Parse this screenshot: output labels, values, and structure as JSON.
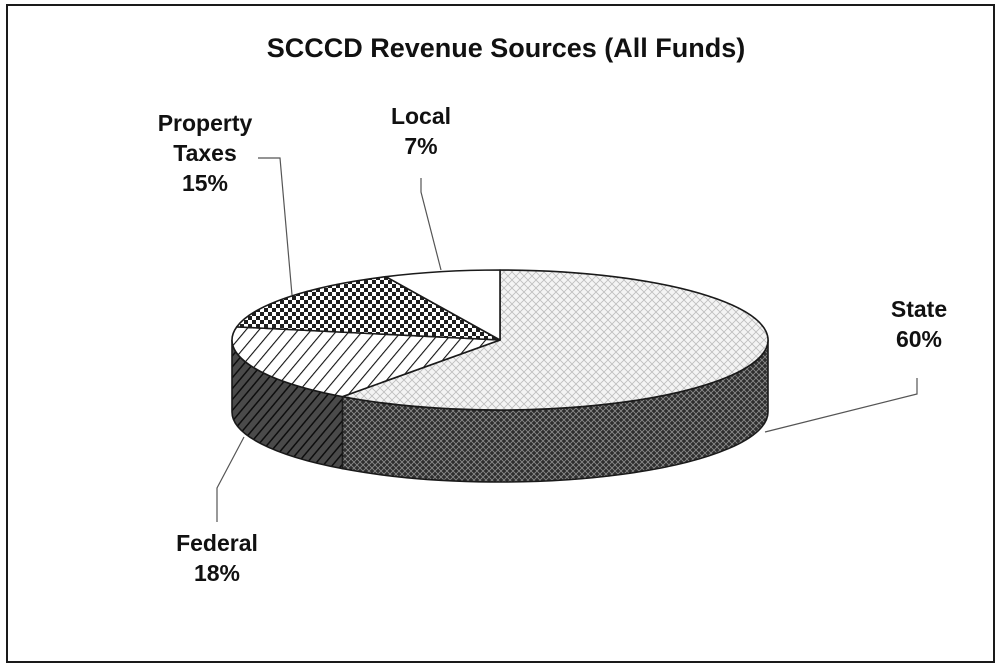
{
  "chart_data": {
    "type": "pie",
    "title": "SCCCD Revenue Sources (All Funds)",
    "three_d": true,
    "slices": [
      {
        "name": "State",
        "value": 60,
        "label_line1": "State",
        "label_pct": "60%",
        "pattern": "light-crosshatch"
      },
      {
        "name": "Federal",
        "value": 18,
        "label_line1": "Federal",
        "label_pct": "18%",
        "pattern": "diagonal-stripes"
      },
      {
        "name": "Property Taxes",
        "value": 15,
        "label_line1": "Property",
        "label_line2": "Taxes",
        "label_pct": "15%",
        "pattern": "checker"
      },
      {
        "name": "Local",
        "value": 7,
        "label_line1": "Local",
        "label_pct": "7%",
        "pattern": "solid-white"
      }
    ],
    "legend": "none",
    "colors": {
      "stroke": "#1a1a1a",
      "background": "#ffffff"
    }
  }
}
